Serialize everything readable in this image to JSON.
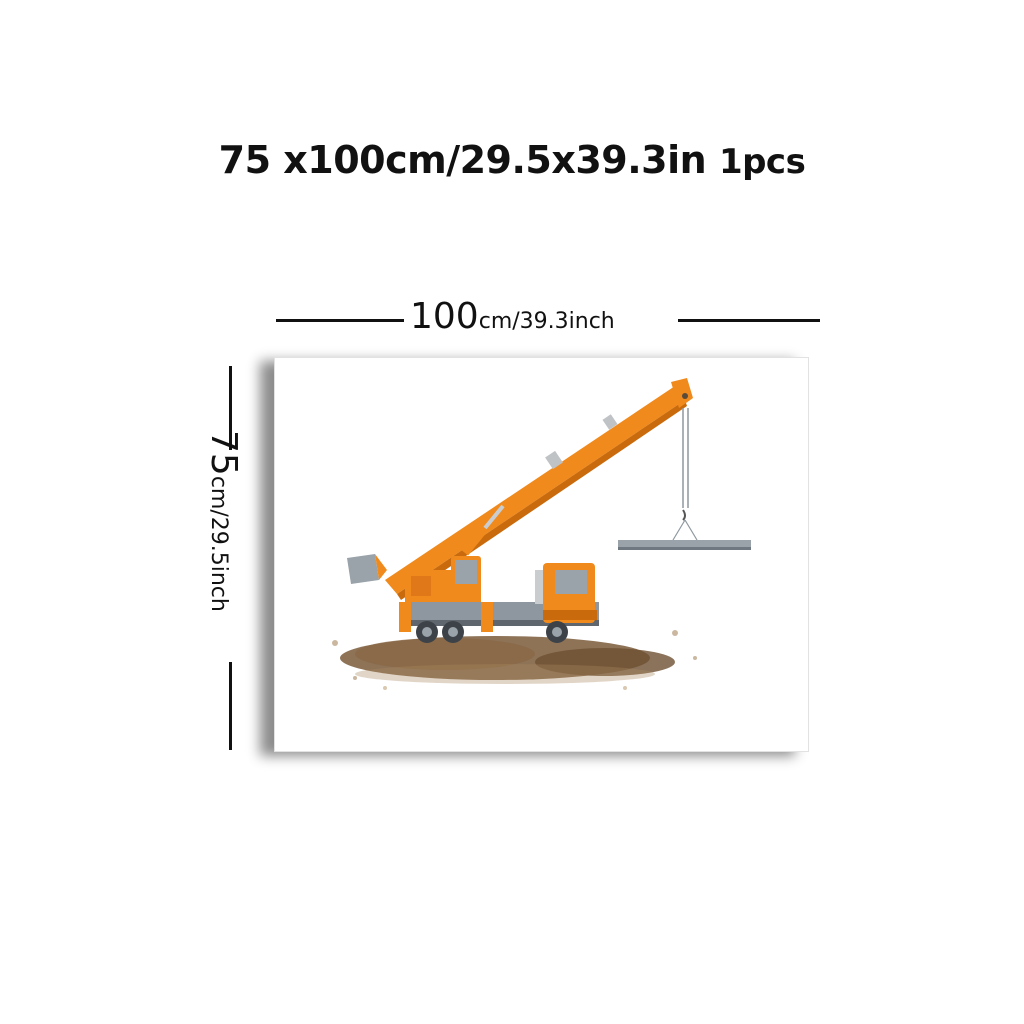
{
  "title": {
    "size_text": "75 x100cm/29.5x39.3in",
    "quantity_text": "1pcs"
  },
  "width_dimension": {
    "value": "100",
    "unit_text": "cm/39.3inch"
  },
  "height_dimension": {
    "value": "75",
    "unit_text": "cm/29.5inch"
  },
  "artwork": {
    "subject": "crane-truck-illustration",
    "colors": {
      "crane_orange": "#f08a1c",
      "crane_dark": "#c96a0c",
      "steel_gray": "#8e979f",
      "dirt_brown": "#7a5a3a",
      "frame": "#e2e2e2"
    }
  }
}
